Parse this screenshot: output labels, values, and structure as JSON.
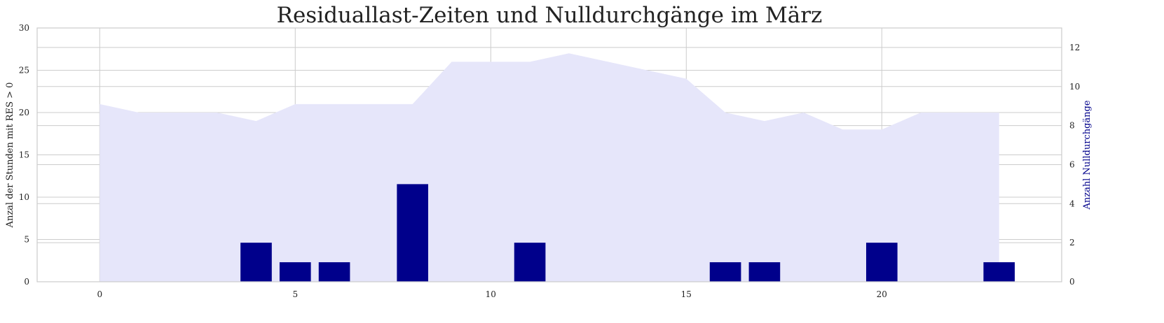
{
  "chart_data": {
    "type": "bar",
    "title": "Residuallast-Zeiten und Nulldurchgänge im März",
    "x": [
      0,
      1,
      2,
      3,
      4,
      5,
      6,
      7,
      8,
      9,
      10,
      11,
      12,
      13,
      14,
      15,
      16,
      17,
      18,
      19,
      20,
      21,
      22,
      23
    ],
    "xlim": [
      -1.6,
      24.6
    ],
    "xticks": [
      "0",
      "5",
      "10",
      "15",
      "20"
    ],
    "series": [
      {
        "axis": "left",
        "kind": "area",
        "values": [
          21,
          20,
          20,
          20,
          19,
          21,
          21,
          21,
          21,
          26,
          26,
          26,
          27,
          26,
          25,
          24,
          20,
          19,
          20,
          18,
          18,
          20,
          20,
          20
        ],
        "color": "#e6e6fa"
      },
      {
        "axis": "right",
        "kind": "bar",
        "values": [
          0,
          0,
          0,
          0,
          2,
          1,
          1,
          0,
          5,
          0,
          0,
          2,
          0,
          0,
          0,
          0,
          1,
          1,
          0,
          0,
          2,
          0,
          0,
          1
        ],
        "color": "#00008b"
      }
    ],
    "left_axis": {
      "label": "Anzal der Stunden mit RES > 0",
      "ylim": [
        0,
        30
      ],
      "ticks": [
        "0",
        "5",
        "10",
        "15",
        "20",
        "25",
        "30"
      ]
    },
    "right_axis": {
      "label": "Anzahl Nulldurchgänge",
      "ylim": [
        0,
        13
      ],
      "ticks": [
        "0",
        "2",
        "4",
        "6",
        "8",
        "10",
        "12"
      ],
      "label_color": "#00008b"
    },
    "grid": true
  }
}
